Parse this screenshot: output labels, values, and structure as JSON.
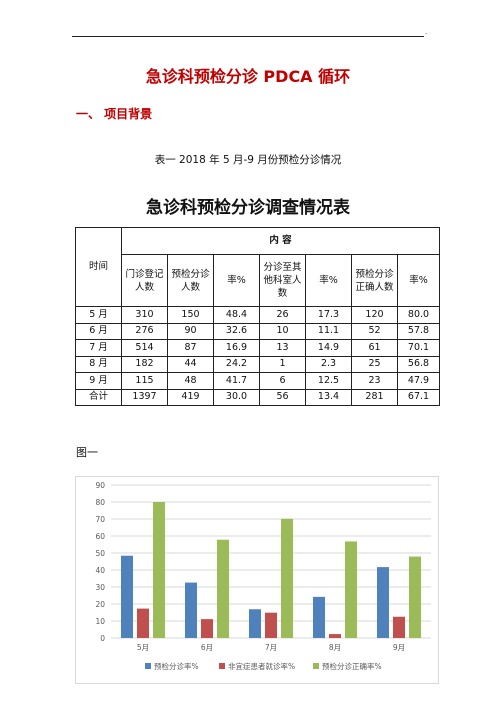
{
  "header": {
    "mark": "."
  },
  "doc": {
    "title": "急诊科预检分诊 PDCA 循环",
    "section_heading": "一、  项目背景",
    "table_caption": "表一  2018 年 5 月-9 月份预检分诊情况",
    "table_title": "急诊科预检分诊调查情况表"
  },
  "table": {
    "time_header": "时间",
    "content_header": "内          容",
    "columns": [
      "门诊登记人数",
      "预检分诊人数",
      "率%",
      "分诊至其他科室人数",
      "率%",
      "预检分诊正确人数",
      "率%"
    ],
    "rows": [
      {
        "label": "5 月",
        "cells": [
          "310",
          "150",
          "48.4",
          "26",
          "17.3",
          "120",
          "80.0"
        ]
      },
      {
        "label": "6 月",
        "cells": [
          "276",
          "90",
          "32.6",
          "10",
          "11.1",
          "52",
          "57.8"
        ]
      },
      {
        "label": "7 月",
        "cells": [
          "514",
          "87",
          "16.9",
          "13",
          "14.9",
          "61",
          "70.1"
        ]
      },
      {
        "label": "8 月",
        "cells": [
          "182",
          "44",
          "24.2",
          "1",
          "2.3",
          "25",
          "56.8"
        ]
      },
      {
        "label": "9 月",
        "cells": [
          "115",
          "48",
          "41.7",
          "6",
          "12.5",
          "23",
          "47.9"
        ]
      },
      {
        "label": "合计",
        "cells": [
          "1397",
          "419",
          "30.0",
          "56",
          "13.4",
          "281",
          "67.1"
        ]
      }
    ]
  },
  "figure_label": "图一",
  "chart_data": {
    "type": "bar",
    "categories": [
      "5月",
      "6月",
      "7月",
      "8月",
      "9月"
    ],
    "series": [
      {
        "name": "预检分诊率%",
        "values": [
          48.4,
          32.6,
          16.9,
          24.2,
          41.7
        ],
        "color": "#4f81bd"
      },
      {
        "name": "非宜症患者就诊率%",
        "values": [
          17.3,
          11.1,
          14.9,
          2.3,
          12.5
        ],
        "color": "#c0504d"
      },
      {
        "name": "预检分诊正确率%",
        "values": [
          80.0,
          57.8,
          70.1,
          56.8,
          47.9
        ],
        "color": "#9bbb59"
      }
    ],
    "ylim": [
      0,
      90
    ],
    "yticks": [
      "0",
      "10",
      "20",
      "30",
      "40",
      "50",
      "60",
      "70",
      "80",
      "90"
    ],
    "grid": true,
    "legend_position": "bottom"
  }
}
